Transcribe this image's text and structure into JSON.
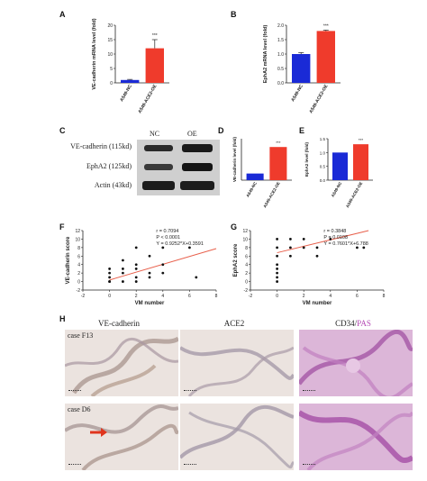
{
  "panels": {
    "A": "A",
    "B": "B",
    "C": "C",
    "D": "D",
    "E": "E",
    "F": "F",
    "G": "G",
    "H": "H"
  },
  "colors": {
    "nc_bar": "#1a2ad6",
    "oe_bar": "#ef3b2c",
    "fit_line": "#e8604c",
    "pas_text": "#b54ab5"
  },
  "chart_data": [
    {
      "id": "A",
      "type": "bar",
      "categories": [
        "A549-NC",
        "A549-ACE2-OE"
      ],
      "values": [
        1.0,
        12.0
      ],
      "error": [
        0.2,
        3.0
      ],
      "ylabel": "VE-cadherin mRNA level (fold)",
      "ylim": [
        0,
        20
      ],
      "yticks": [
        "0",
        "5",
        "10",
        "15",
        "20"
      ],
      "annotation": "***"
    },
    {
      "id": "B",
      "type": "bar",
      "categories": [
        "A549-NC",
        "A549-ACE2-OE"
      ],
      "values": [
        1.0,
        1.8
      ],
      "error": [
        0.05,
        0.03
      ],
      "ylabel": "EphA2 mRNA level (fold)",
      "ylim": [
        0.0,
        2.0
      ],
      "yticks": [
        "0.0",
        "0.5",
        "1.0",
        "1.5",
        "2.0"
      ],
      "annotation": "***"
    },
    {
      "id": "D",
      "type": "bar",
      "categories": [
        "A549-NC",
        "A549-ACE2-OE"
      ],
      "values": [
        0.4,
        2.0
      ],
      "ylabel": "VE-cadherin level (fold)",
      "ylim": [
        0,
        2.5
      ],
      "yticks": [],
      "annotation": "***"
    },
    {
      "id": "E",
      "type": "bar",
      "categories": [
        "A549-NC",
        "A549-ACE2-OE"
      ],
      "values": [
        1.0,
        1.3
      ],
      "ylabel": "EphA2 level (fold)",
      "ylim": [
        0,
        1.5
      ],
      "yticks": [
        "0.0",
        "0.5",
        "1.0",
        "1.5"
      ],
      "annotation": "***"
    },
    {
      "id": "F",
      "type": "scatter",
      "xlabel": "VM number",
      "ylabel": "VE-cadherin score",
      "xlim": [
        -2,
        8
      ],
      "ylim": [
        -2,
        12
      ],
      "xticks": [
        "-2",
        "0",
        "2",
        "4",
        "6",
        "8"
      ],
      "yticks": [
        "-2",
        "0",
        "2",
        "4",
        "6",
        "8",
        "10",
        "12"
      ],
      "points": [
        [
          0,
          0
        ],
        [
          0,
          0
        ],
        [
          0,
          1
        ],
        [
          0,
          2
        ],
        [
          0,
          3
        ],
        [
          1,
          0
        ],
        [
          1,
          2
        ],
        [
          1,
          3
        ],
        [
          1,
          5
        ],
        [
          2,
          0
        ],
        [
          2,
          1
        ],
        [
          2,
          3
        ],
        [
          2,
          4
        ],
        [
          2,
          8
        ],
        [
          3,
          1
        ],
        [
          3,
          2
        ],
        [
          3,
          6
        ],
        [
          4,
          2
        ],
        [
          4,
          4
        ],
        [
          4,
          8
        ],
        [
          6,
          8
        ],
        [
          6.5,
          1
        ]
      ],
      "fit": {
        "slope": 0.9252,
        "intercept": 0.3591
      },
      "stats": [
        "r = 0.7094",
        "P < 0.0001",
        "Y = 0.9252*X+0.3591"
      ]
    },
    {
      "id": "G",
      "type": "scatter",
      "xlabel": "VM number",
      "ylabel": "EphA2 score",
      "xlim": [
        -2,
        8
      ],
      "ylim": [
        -2,
        12
      ],
      "xticks": [
        "-2",
        "0",
        "2",
        "4",
        "6",
        "8"
      ],
      "yticks": [
        "-2",
        "0",
        "2",
        "4",
        "6",
        "8",
        "10",
        "12"
      ],
      "points": [
        [
          0,
          0
        ],
        [
          0,
          1
        ],
        [
          0,
          2
        ],
        [
          0,
          3
        ],
        [
          0,
          4
        ],
        [
          0,
          6
        ],
        [
          0,
          8
        ],
        [
          0,
          10
        ],
        [
          1,
          6
        ],
        [
          1,
          8
        ],
        [
          1,
          10
        ],
        [
          2,
          8
        ],
        [
          2,
          10
        ],
        [
          3,
          6
        ],
        [
          3,
          8
        ],
        [
          4,
          10
        ],
        [
          6,
          8
        ],
        [
          6.5,
          8
        ]
      ],
      "fit": {
        "slope": 0.7601,
        "intercept": 6.788
      },
      "stats": [
        "r = 0.3848",
        "P = 0.0108",
        "Y = 0.7601*X+6.788"
      ]
    }
  ],
  "western": {
    "columns": [
      "NC",
      "OE"
    ],
    "rows": [
      "VE-cadherin (115kd)",
      "EphA2 (125kd)",
      "Actin (43kd)"
    ]
  },
  "ihc": {
    "columns": [
      "VE-cadherin",
      "ACE2"
    ],
    "col3": {
      "part1": "CD34",
      "sep": "/",
      "part2": "PAS"
    },
    "rows": [
      "case F13",
      "case D6"
    ]
  }
}
